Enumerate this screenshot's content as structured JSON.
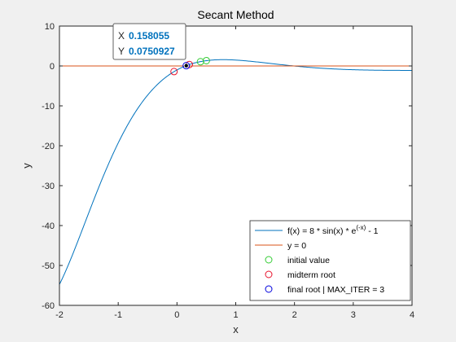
{
  "chart_data": {
    "type": "line",
    "title": "Secant Method",
    "xlabel": "x",
    "ylabel": "y",
    "xlim": [
      -2,
      4
    ],
    "ylim": [
      -60,
      10
    ],
    "xticks": [
      "-2",
      "-1",
      "0",
      "1",
      "2",
      "3",
      "4"
    ],
    "yticks": [
      "10",
      "0",
      "-10",
      "-20",
      "-30",
      "-40",
      "-50",
      "-60"
    ],
    "grid": false,
    "legend_position": "bottom-right",
    "series": [
      {
        "name": "f(x) = 8 * sin(x) * e^(-x) - 1",
        "kind": "line",
        "function": "8*sin(x)*exp(-x)-1",
        "x_range": [
          -2,
          4
        ],
        "color": "#0072bd"
      },
      {
        "name": "y = 0",
        "kind": "line",
        "x": [
          -2,
          4
        ],
        "y": [
          0,
          0
        ],
        "color": "#d95319"
      },
      {
        "name": "initial value",
        "kind": "marker",
        "x": [
          0.4,
          0.5
        ],
        "y": [
          1.07,
          1.33
        ],
        "color": "#33cc33"
      },
      {
        "name": "midterm root",
        "kind": "marker",
        "x": [
          -0.05,
          0.21
        ],
        "y": [
          -1.41,
          0.36
        ],
        "color": "#e8102a"
      },
      {
        "name": "final root | MAX_ITER = 3",
        "kind": "marker",
        "x": [
          0.158055
        ],
        "y": [
          0.0750927
        ],
        "color": "#0000dd"
      }
    ],
    "datatip": {
      "x_label": "X",
      "x_value": "0.158055",
      "y_label": "Y",
      "y_value": "0.0750927"
    }
  },
  "legend": {
    "entries": [
      {
        "text": "f(x) = 8 * sin(x) * e",
        "sup": "(-x)",
        "suffix": " - 1"
      },
      {
        "text": "y = 0"
      },
      {
        "text": "initial value"
      },
      {
        "text": "midterm root"
      },
      {
        "text": "final root | MAX_ITER = 3"
      }
    ]
  }
}
